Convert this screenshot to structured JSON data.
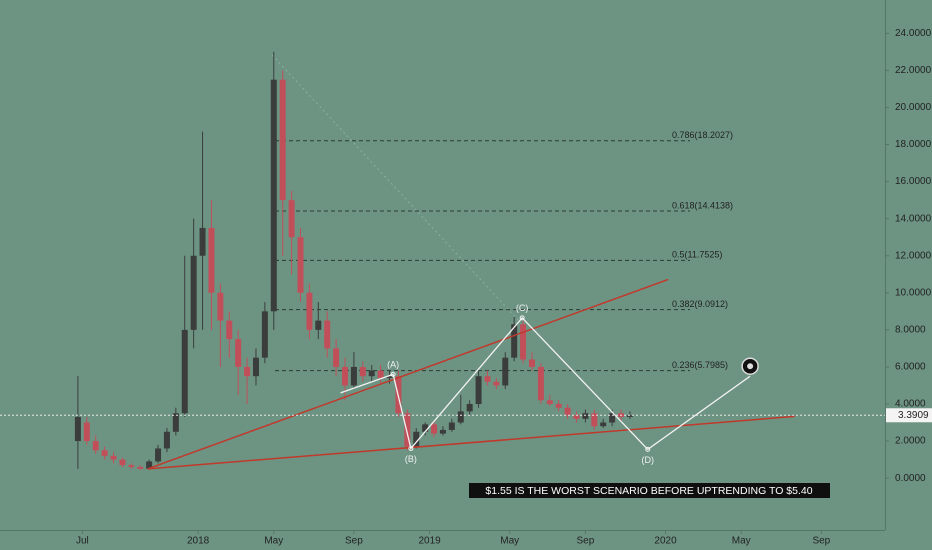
{
  "chart_data": {
    "type": "candlestick",
    "x": [
      0,
      2,
      4,
      6,
      8,
      10,
      12,
      14,
      16,
      18,
      20,
      22,
      24,
      26,
      28,
      30,
      32,
      34,
      36,
      38,
      40,
      42,
      44,
      46,
      48,
      50,
      52,
      54,
      56,
      58,
      60,
      62,
      64,
      66,
      68,
      70,
      72,
      74,
      76,
      78,
      80,
      82,
      84,
      86,
      88,
      90,
      92,
      94,
      96,
      98,
      100,
      102,
      104,
      106,
      108,
      110,
      112,
      114,
      116,
      118,
      120,
      122,
      124
    ],
    "open": [
      2.0,
      3.0,
      2.0,
      1.5,
      1.2,
      1.0,
      0.7,
      0.6,
      0.5,
      0.9,
      1.6,
      2.5,
      3.5,
      8.0,
      12,
      13.5,
      10,
      8.5,
      7.5,
      6,
      5.5,
      6.5,
      9,
      21.5,
      15,
      13,
      10,
      8,
      8.5,
      7,
      6,
      5,
      6,
      5.5,
      5.8,
      5.4,
      5.5,
      3.5,
      1.7,
      2.5,
      2.9,
      2.4,
      2.6,
      3.0,
      3.6,
      4.0,
      5.5,
      5.2,
      5.0,
      6.5,
      8.3,
      6.4,
      6.0,
      4.2,
      4.0,
      3.8,
      3.4,
      3.2,
      3.5,
      2.8,
      3.0,
      3.5,
      3.3
    ],
    "high": [
      5.5,
      3.3,
      2.3,
      1.7,
      1.4,
      1.1,
      0.8,
      0.7,
      1.0,
      1.8,
      2.7,
      3.8,
      12,
      14,
      18.7,
      15,
      10.5,
      9,
      8,
      6.5,
      7,
      9.5,
      23,
      22,
      15.5,
      13.5,
      10.5,
      9.5,
      9,
      7.5,
      6.5,
      6.8,
      6.3,
      6.1,
      6.1,
      5.9,
      5.8,
      3.7,
      2.7,
      3.0,
      3.1,
      2.8,
      3.2,
      4.5,
      4.2,
      5.8,
      5.8,
      5.4,
      6.8,
      8.7,
      8.5,
      6.8,
      6.2,
      4.5,
      4.2,
      4.0,
      3.6,
      3.7,
      3.7,
      3.2,
      3.7,
      3.7,
      3.6
    ],
    "low": [
      0.5,
      1.8,
      1.3,
      1.0,
      0.8,
      0.6,
      0.5,
      0.45,
      0.45,
      0.8,
      1.4,
      2.3,
      3.3,
      7,
      8,
      8,
      6,
      6.5,
      4.5,
      4,
      5,
      6.2,
      8,
      12,
      11,
      9.5,
      7.5,
      7.5,
      6.5,
      5.5,
      4.2,
      4.8,
      5.2,
      5.2,
      5.1,
      5.1,
      3.3,
      1.5,
      1.6,
      2.3,
      2.2,
      2.3,
      2.5,
      2.9,
      3.4,
      3.8,
      5.0,
      4.8,
      4.8,
      6.3,
      6.2,
      5.8,
      4.0,
      3.9,
      3.6,
      3.2,
      3.0,
      3.0,
      2.6,
      2.7,
      2.8,
      3.1,
      3.2
    ],
    "close": [
      3.3,
      2.0,
      1.5,
      1.2,
      1.0,
      0.7,
      0.6,
      0.5,
      0.9,
      1.6,
      2.5,
      3.5,
      8.0,
      12,
      13.5,
      10,
      8.5,
      7.5,
      6,
      5.5,
      6.5,
      9,
      21.5,
      15,
      13,
      10,
      8,
      8.5,
      7,
      6,
      5,
      6,
      5.5,
      5.8,
      5.4,
      5.5,
      3.5,
      1.7,
      2.5,
      2.9,
      2.4,
      2.6,
      3.0,
      3.6,
      4.0,
      5.5,
      5.2,
      5.0,
      6.5,
      8.3,
      6.4,
      6.0,
      4.2,
      4.0,
      3.8,
      3.4,
      3.2,
      3.5,
      2.8,
      3.0,
      3.5,
      3.3,
      3.39
    ],
    "up_color": "#3b3d3c",
    "down_color": "#c14f5a",
    "xlim": [
      -17.5,
      181.3
    ],
    "xticks": [
      {
        "value": 1,
        "label": "Jul"
      },
      {
        "value": 27,
        "label": "2018"
      },
      {
        "value": 44,
        "label": "May"
      },
      {
        "value": 62,
        "label": "Sep"
      },
      {
        "value": 79,
        "label": "2019"
      },
      {
        "value": 97,
        "label": "May"
      },
      {
        "value": 114,
        "label": "Sep"
      },
      {
        "value": 132,
        "label": "2020"
      },
      {
        "value": 149,
        "label": "May"
      },
      {
        "value": 167,
        "label": "Sep"
      }
    ],
    "ylim": [
      -2.8,
      25.8
    ],
    "yticks": [
      {
        "value": 0,
        "label": "0.0000"
      },
      {
        "value": 2,
        "label": "2.0000"
      },
      {
        "value": 4,
        "label": "4.0000"
      },
      {
        "value": 6,
        "label": "6.0000"
      },
      {
        "value": 8,
        "label": "8.0000"
      },
      {
        "value": 10,
        "label": "10.0000"
      },
      {
        "value": 12,
        "label": "12.0000"
      },
      {
        "value": 14,
        "label": "14.0000"
      },
      {
        "value": 16,
        "label": "16.0000"
      },
      {
        "value": 18,
        "label": "18.0000"
      },
      {
        "value": 20,
        "label": "20.0000"
      },
      {
        "value": 22,
        "label": "22.0000"
      },
      {
        "value": 24,
        "label": "24.0000"
      }
    ],
    "last_price": {
      "value": 3.3909,
      "label": "3.3909"
    },
    "fib_levels": [
      {
        "value": 18.2027,
        "label": "0.786(18.2027)"
      },
      {
        "value": 14.4138,
        "label": "0.618(14.4138)"
      },
      {
        "value": 11.7525,
        "label": "0.5(11.7525)"
      },
      {
        "value": 9.0912,
        "label": "0.382(9.0912)"
      },
      {
        "value": 5.7985,
        "label": "0.236(5.7985)"
      }
    ],
    "trendlines": [
      {
        "color": "#c0392b",
        "points": [
          [
            15.7,
            0.5
          ],
          [
            132.6,
            10.72
          ]
        ]
      },
      {
        "color": "#c0392b",
        "points": [
          [
            15.7,
            0.5
          ],
          [
            161,
            3.33
          ]
        ]
      }
    ],
    "wave": {
      "color": "#f2f2f2",
      "points": [
        [
          59,
          4.6
        ],
        [
          70.8,
          5.6
        ],
        [
          74.8,
          1.6
        ],
        [
          99.8,
          8.65
        ],
        [
          128,
          1.55
        ],
        [
          151,
          5.5
        ]
      ],
      "labels": [
        null,
        "(A)",
        "(B)",
        "(C)",
        "(D)",
        null
      ]
    },
    "annotation": "$1.55 IS THE WORST SCENARIO BEFORE UPTRENDING TO $5.40"
  }
}
